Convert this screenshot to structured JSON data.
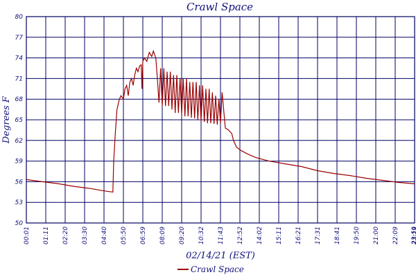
{
  "chart_data": {
    "type": "line",
    "title": "Crawl Space",
    "xlabel": "02/14/21 (EST)",
    "ylabel": "Degrees F",
    "x_tick_labels": [
      "00:01",
      "01:11",
      "02:20",
      "03:30",
      "04:40",
      "05:50",
      "06:59",
      "08:09",
      "09:20",
      "10:32",
      "11:43",
      "12:52",
      "14:02",
      "15:11",
      "16:21",
      "17:31",
      "18:41",
      "19:50",
      "21:00",
      "22:09",
      "23:19",
      "23:59"
    ],
    "y_tick_labels": [
      "50",
      "53",
      "56",
      "59",
      "62",
      "65",
      "68",
      "71",
      "74",
      "77",
      "80"
    ],
    "ylim": [
      50,
      80
    ],
    "grid": true,
    "legend_position": "bottom-center",
    "colors": {
      "series": "#9b0000",
      "grid": "#000060",
      "text": "#10107a"
    },
    "series": [
      {
        "name": "Crawl Space",
        "x_unit": "hours",
        "points": [
          [
            0.02,
            56.3
          ],
          [
            1.0,
            56.0
          ],
          [
            2.0,
            55.7
          ],
          [
            3.0,
            55.3
          ],
          [
            4.0,
            55.0
          ],
          [
            4.7,
            54.7
          ],
          [
            5.0,
            54.6
          ],
          [
            5.35,
            54.5
          ],
          [
            5.4,
            59.0
          ],
          [
            5.5,
            63.0
          ],
          [
            5.6,
            66.5
          ],
          [
            5.75,
            68.0
          ],
          [
            5.85,
            68.5
          ],
          [
            6.0,
            68.0
          ],
          [
            6.1,
            69.5
          ],
          [
            6.2,
            70.0
          ],
          [
            6.3,
            68.5
          ],
          [
            6.4,
            70.5
          ],
          [
            6.5,
            71.0
          ],
          [
            6.6,
            70.0
          ],
          [
            6.7,
            71.5
          ],
          [
            6.8,
            72.5
          ],
          [
            6.9,
            72.0
          ],
          [
            7.0,
            72.8
          ],
          [
            7.1,
            73.0
          ],
          [
            7.15,
            69.5
          ],
          [
            7.2,
            73.5
          ],
          [
            7.3,
            74.0
          ],
          [
            7.45,
            73.5
          ],
          [
            7.6,
            74.8
          ],
          [
            7.75,
            74.2
          ],
          [
            7.85,
            75.0
          ],
          [
            8.0,
            74.0
          ],
          [
            8.1,
            71.0
          ],
          [
            8.2,
            67.5
          ],
          [
            8.3,
            72.5
          ],
          [
            8.4,
            67.0
          ],
          [
            8.5,
            72.5
          ],
          [
            8.6,
            67.0
          ],
          [
            8.7,
            72.0
          ],
          [
            8.8,
            67.0
          ],
          [
            8.9,
            72.0
          ],
          [
            9.0,
            66.5
          ],
          [
            9.1,
            71.5
          ],
          [
            9.2,
            66.0
          ],
          [
            9.3,
            71.5
          ],
          [
            9.4,
            66.0
          ],
          [
            9.5,
            71.0
          ],
          [
            9.6,
            65.8
          ],
          [
            9.7,
            71.0
          ],
          [
            9.8,
            65.5
          ],
          [
            9.9,
            71.0
          ],
          [
            10.0,
            65.5
          ],
          [
            10.1,
            70.5
          ],
          [
            10.2,
            65.3
          ],
          [
            10.3,
            70.5
          ],
          [
            10.4,
            65.2
          ],
          [
            10.5,
            70.5
          ],
          [
            10.6,
            65.0
          ],
          [
            10.7,
            70.0
          ],
          [
            10.8,
            64.8
          ],
          [
            10.9,
            70.0
          ],
          [
            11.0,
            64.7
          ],
          [
            11.1,
            69.5
          ],
          [
            11.2,
            64.5
          ],
          [
            11.3,
            69.5
          ],
          [
            11.4,
            64.5
          ],
          [
            11.5,
            69.0
          ],
          [
            11.6,
            64.4
          ],
          [
            11.7,
            68.5
          ],
          [
            11.8,
            64.3
          ],
          [
            11.9,
            68.0
          ],
          [
            12.0,
            64.5
          ],
          [
            12.1,
            69.0
          ],
          [
            12.3,
            63.8
          ],
          [
            12.5,
            63.5
          ],
          [
            12.7,
            63.0
          ],
          [
            12.8,
            62.0
          ],
          [
            13.0,
            61.0
          ],
          [
            13.3,
            60.5
          ],
          [
            13.7,
            60.0
          ],
          [
            14.2,
            59.5
          ],
          [
            15.0,
            59.0
          ],
          [
            16.0,
            58.6
          ],
          [
            17.0,
            58.2
          ],
          [
            18.0,
            57.6
          ],
          [
            19.0,
            57.2
          ],
          [
            20.0,
            56.9
          ],
          [
            21.0,
            56.5
          ],
          [
            22.0,
            56.2
          ],
          [
            23.0,
            55.9
          ],
          [
            23.98,
            55.7
          ]
        ]
      }
    ]
  }
}
